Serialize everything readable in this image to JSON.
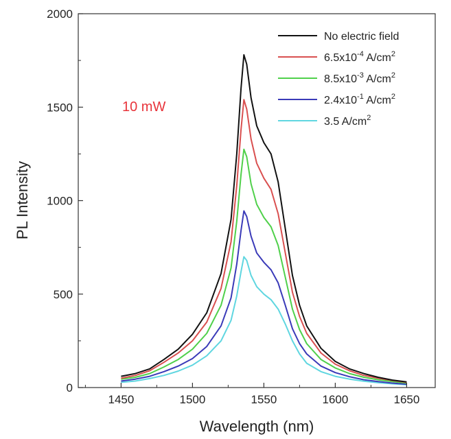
{
  "chart_data": {
    "type": "line",
    "title": "",
    "xlabel": "Wavelength (nm)",
    "ylabel": "PL Intensity",
    "xlim": [
      1420,
      1670
    ],
    "ylim": [
      0,
      2000
    ],
    "x_ticks": [
      "1450",
      "1500",
      "1550",
      "1600",
      "1650"
    ],
    "y_ticks": [
      "0",
      "500",
      "1000",
      "1500",
      "2000"
    ],
    "grid": false,
    "legend_position": "top-right",
    "annotation": {
      "text": "10 mW",
      "color": "#e8333a"
    },
    "series": [
      {
        "name": "No electric field",
        "legend_main": "No electric field",
        "legend_sup": "",
        "legend_tail": "",
        "color": "#111111",
        "peak": 1780,
        "shoulder": 1300,
        "points": [
          [
            1450,
            60
          ],
          [
            1460,
            75
          ],
          [
            1470,
            100
          ],
          [
            1480,
            150
          ],
          [
            1490,
            205
          ],
          [
            1500,
            285
          ],
          [
            1510,
            400
          ],
          [
            1520,
            610
          ],
          [
            1527,
            900
          ],
          [
            1531,
            1250
          ],
          [
            1534,
            1600
          ],
          [
            1536,
            1780
          ],
          [
            1538,
            1730
          ],
          [
            1541,
            1550
          ],
          [
            1545,
            1400
          ],
          [
            1550,
            1310
          ],
          [
            1555,
            1250
          ],
          [
            1560,
            1100
          ],
          [
            1565,
            850
          ],
          [
            1570,
            600
          ],
          [
            1575,
            440
          ],
          [
            1580,
            330
          ],
          [
            1590,
            210
          ],
          [
            1600,
            140
          ],
          [
            1610,
            100
          ],
          [
            1620,
            75
          ],
          [
            1630,
            55
          ],
          [
            1640,
            40
          ],
          [
            1650,
            30
          ]
        ]
      },
      {
        "name": "6.5x10-4 A/cm2",
        "legend_main": "6.5x10",
        "legend_sup": "-4",
        "legend_tail": " A/cm",
        "legend_sup2": "2",
        "color": "#d94f4f",
        "peak": 1540,
        "shoulder": 1110,
        "points": [
          [
            1450,
            50
          ],
          [
            1460,
            65
          ],
          [
            1470,
            90
          ],
          [
            1480,
            135
          ],
          [
            1490,
            185
          ],
          [
            1500,
            250
          ],
          [
            1510,
            350
          ],
          [
            1520,
            530
          ],
          [
            1527,
            780
          ],
          [
            1531,
            1080
          ],
          [
            1534,
            1380
          ],
          [
            1536,
            1540
          ],
          [
            1538,
            1490
          ],
          [
            1541,
            1330
          ],
          [
            1545,
            1200
          ],
          [
            1550,
            1120
          ],
          [
            1555,
            1060
          ],
          [
            1560,
            930
          ],
          [
            1565,
            720
          ],
          [
            1570,
            510
          ],
          [
            1575,
            380
          ],
          [
            1580,
            290
          ],
          [
            1590,
            185
          ],
          [
            1600,
            125
          ],
          [
            1610,
            90
          ],
          [
            1620,
            65
          ],
          [
            1630,
            50
          ],
          [
            1640,
            38
          ],
          [
            1650,
            28
          ]
        ]
      },
      {
        "name": "8.5x10-3 A/cm2",
        "legend_main": "8.5x10",
        "legend_sup": "-3",
        "legend_tail": " A/cm",
        "legend_sup2": "2",
        "color": "#4fd04a",
        "peak": 1275,
        "shoulder": 900,
        "points": [
          [
            1450,
            45
          ],
          [
            1460,
            55
          ],
          [
            1470,
            75
          ],
          [
            1480,
            110
          ],
          [
            1490,
            150
          ],
          [
            1500,
            205
          ],
          [
            1510,
            290
          ],
          [
            1520,
            440
          ],
          [
            1527,
            640
          ],
          [
            1531,
            890
          ],
          [
            1534,
            1140
          ],
          [
            1536,
            1275
          ],
          [
            1538,
            1235
          ],
          [
            1541,
            1090
          ],
          [
            1545,
            980
          ],
          [
            1550,
            910
          ],
          [
            1555,
            860
          ],
          [
            1560,
            760
          ],
          [
            1565,
            590
          ],
          [
            1570,
            420
          ],
          [
            1575,
            310
          ],
          [
            1580,
            235
          ],
          [
            1590,
            150
          ],
          [
            1600,
            105
          ],
          [
            1610,
            75
          ],
          [
            1620,
            55
          ],
          [
            1630,
            42
          ],
          [
            1640,
            32
          ],
          [
            1650,
            24
          ]
        ]
      },
      {
        "name": "2.4x10-1 A/cm2",
        "legend_main": "2.4x10",
        "legend_sup": "-1",
        "legend_tail": " A/cm",
        "legend_sup2": "2",
        "color": "#3a3ab8",
        "peak": 945,
        "shoulder": 660,
        "points": [
          [
            1450,
            35
          ],
          [
            1460,
            45
          ],
          [
            1470,
            60
          ],
          [
            1480,
            85
          ],
          [
            1490,
            115
          ],
          [
            1500,
            155
          ],
          [
            1510,
            220
          ],
          [
            1520,
            330
          ],
          [
            1527,
            480
          ],
          [
            1531,
            660
          ],
          [
            1534,
            840
          ],
          [
            1536,
            945
          ],
          [
            1538,
            915
          ],
          [
            1541,
            810
          ],
          [
            1545,
            720
          ],
          [
            1550,
            670
          ],
          [
            1555,
            630
          ],
          [
            1560,
            560
          ],
          [
            1565,
            440
          ],
          [
            1570,
            315
          ],
          [
            1575,
            235
          ],
          [
            1580,
            180
          ],
          [
            1590,
            115
          ],
          [
            1600,
            80
          ],
          [
            1610,
            58
          ],
          [
            1620,
            42
          ],
          [
            1630,
            32
          ],
          [
            1640,
            24
          ],
          [
            1650,
            18
          ]
        ]
      },
      {
        "name": "3.5 A/cm2",
        "legend_main": "3.5 A/cm",
        "legend_sup": "2",
        "legend_tail": "",
        "color": "#5fd6e0",
        "peak": 700,
        "shoulder": 500,
        "points": [
          [
            1450,
            28
          ],
          [
            1460,
            35
          ],
          [
            1470,
            48
          ],
          [
            1480,
            65
          ],
          [
            1490,
            88
          ],
          [
            1500,
            120
          ],
          [
            1510,
            170
          ],
          [
            1520,
            250
          ],
          [
            1527,
            360
          ],
          [
            1531,
            490
          ],
          [
            1534,
            620
          ],
          [
            1536,
            700
          ],
          [
            1538,
            680
          ],
          [
            1541,
            600
          ],
          [
            1545,
            540
          ],
          [
            1550,
            500
          ],
          [
            1555,
            470
          ],
          [
            1560,
            420
          ],
          [
            1565,
            340
          ],
          [
            1570,
            250
          ],
          [
            1575,
            180
          ],
          [
            1580,
            130
          ],
          [
            1590,
            85
          ],
          [
            1600,
            60
          ],
          [
            1610,
            45
          ],
          [
            1620,
            34
          ],
          [
            1630,
            26
          ],
          [
            1640,
            20
          ],
          [
            1650,
            15
          ]
        ]
      }
    ]
  }
}
